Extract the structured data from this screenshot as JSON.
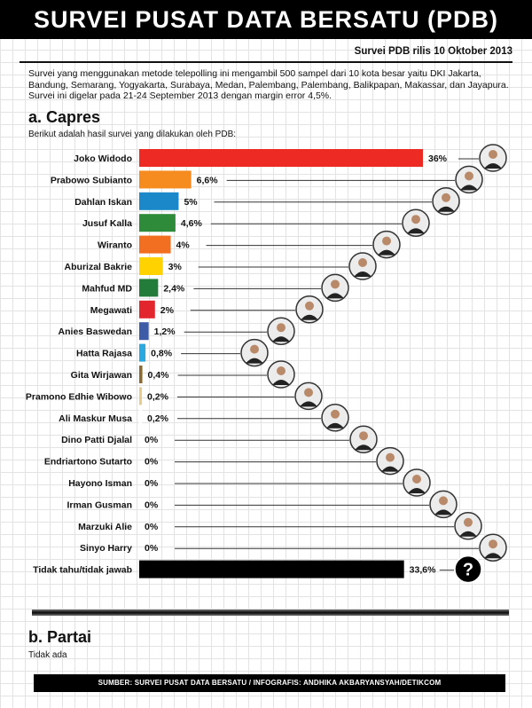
{
  "header": {
    "title": "SURVEI PUSAT DATA BERSATU (PDB)",
    "release": "Survei PDB rilis 10 Oktober 2013"
  },
  "description": "Survei yang menggunakan metode telepolling ini mengambil 500 sampel dari 10 kota besar yaitu DKI Jakarta, Bandung, Semarang, Yogyakarta, Surabaya, Medan, Palembang, Palembang, Balikpapan, Makassar, dan Jayapura. Survei ini digelar pada 21-24 September 2013 dengan margin error 4,5%.",
  "capres": {
    "heading": "a. Capres",
    "subheading": "Berikut adalah hasil survei yang dilakukan oleh PDB:"
  },
  "partai": {
    "heading": "b. Partai",
    "note": "Tidak ada"
  },
  "footer": "SUMBER: SURVEI PUSAT DATA BERSATU / INFOGRAFIS: ANDHIKA AKBARYANSYAH/DETIKCOM",
  "chart_data": {
    "type": "bar",
    "orientation": "horizontal",
    "categories": [
      "Joko Widodo",
      "Prabowo Subianto",
      "Dahlan Iskan",
      "Jusuf Kalla",
      "Wiranto",
      "Aburizal Bakrie",
      "Mahfud MD",
      "Megawati",
      "Anies Baswedan",
      "Hatta Rajasa",
      "Gita Wirjawan",
      "Pramono Edhie Wibowo",
      "Ali Maskur Musa",
      "Dino Patti Djalal",
      "Endriartono Sutarto",
      "Hayono Isman",
      "Irman Gusman",
      "Marzuki Alie",
      "Sinyo Harry",
      "Tidak tahu/tidak jawab"
    ],
    "values": [
      36,
      6.6,
      5,
      4.6,
      4,
      3,
      2.4,
      2,
      1.2,
      0.8,
      0.4,
      0.2,
      0.2,
      0,
      0,
      0,
      0,
      0,
      0,
      33.6
    ],
    "value_labels": [
      "36%",
      "6,6%",
      "5%",
      "4,6%",
      "4%",
      "3%",
      "2,4%",
      "2%",
      "1,2%",
      "0,8%",
      "0,4%",
      "0,2%",
      "0,2%",
      "0%",
      "0%",
      "0%",
      "0%",
      "0%",
      "0%",
      "33,6%"
    ],
    "colors": [
      "#ee2a24",
      "#f68b1f",
      "#1a88c9",
      "#2e8b3a",
      "#f26f22",
      "#ffd200",
      "#247c3a",
      "#e3262d",
      "#3e5ba8",
      "#29a9df",
      "#8c6a2f",
      "#e6cb8a",
      "#ffffff",
      "#ffffff",
      "#ffffff",
      "#ffffff",
      "#ffffff",
      "#ffffff",
      "#ffffff",
      "#000000"
    ]
  }
}
